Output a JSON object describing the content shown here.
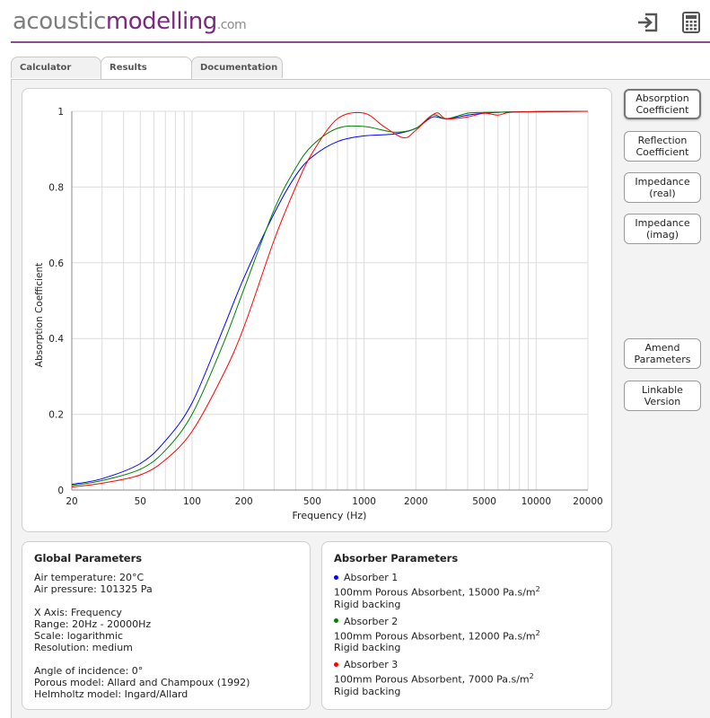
{
  "header": {
    "logo_part1": "acoustic",
    "logo_part2": "modelling",
    "logo_part3": ".com"
  },
  "tabs": [
    {
      "label": "Calculator"
    },
    {
      "label": "Results"
    },
    {
      "label": "Documentation"
    }
  ],
  "active_tab": "Results",
  "side_buttons": [
    {
      "label": "Absorption Coefficient"
    },
    {
      "label": "Reflection Coefficient"
    },
    {
      "label": "Impedance (real)"
    },
    {
      "label": "Impedance (imag)"
    },
    {
      "label": "Amend Parameters"
    },
    {
      "label": "Linkable Version"
    }
  ],
  "chart_data": {
    "type": "line",
    "xlabel": "Frequency (Hz)",
    "ylabel": "Absorption Coefficient",
    "xscale": "log",
    "xlim": [
      20,
      20000
    ],
    "ylim": [
      0,
      1
    ],
    "x_ticks": [
      20,
      50,
      100,
      200,
      500,
      1000,
      2000,
      5000,
      10000,
      20000
    ],
    "x_tick_labels": [
      "20",
      "50",
      "100",
      "200",
      "500",
      "1000",
      "2000",
      "5000",
      "10000",
      "20000"
    ],
    "y_ticks": [
      0,
      0.2,
      0.4,
      0.6,
      0.8,
      1
    ],
    "y_tick_labels": [
      "0",
      "0.2",
      "0.4",
      "0.6",
      "0.8",
      "1"
    ],
    "grid": true,
    "series": [
      {
        "color": "#0000ff",
        "x": [
          20,
          30,
          50,
          70,
          100,
          150,
          200,
          300,
          400,
          500,
          700,
          1000,
          1500,
          2000,
          2500,
          3000,
          4000,
          5000,
          7000,
          10000,
          20000
        ],
        "values": [
          0.015,
          0.03,
          0.07,
          0.13,
          0.23,
          0.42,
          0.56,
          0.73,
          0.83,
          0.88,
          0.92,
          0.935,
          0.94,
          0.955,
          0.985,
          0.98,
          0.99,
          0.995,
          0.998,
          0.999,
          1.0
        ]
      },
      {
        "color": "#008000",
        "x": [
          20,
          30,
          50,
          70,
          100,
          150,
          200,
          300,
          400,
          500,
          700,
          1000,
          1500,
          2000,
          2500,
          3000,
          4000,
          5000,
          7000,
          10000,
          20000
        ],
        "values": [
          0.012,
          0.025,
          0.055,
          0.105,
          0.2,
          0.38,
          0.53,
          0.74,
          0.85,
          0.91,
          0.955,
          0.96,
          0.945,
          0.955,
          0.99,
          0.98,
          0.995,
          0.997,
          0.998,
          0.999,
          1.0
        ]
      },
      {
        "color": "#ff0000",
        "x": [
          20,
          30,
          50,
          70,
          100,
          150,
          200,
          300,
          400,
          500,
          700,
          1000,
          1300,
          1700,
          2000,
          2600,
          3000,
          4000,
          5000,
          6000,
          7000,
          10000,
          20000
        ],
        "values": [
          0.008,
          0.018,
          0.04,
          0.08,
          0.155,
          0.3,
          0.43,
          0.66,
          0.8,
          0.89,
          0.98,
          0.995,
          0.96,
          0.93,
          0.95,
          0.995,
          0.98,
          0.985,
          0.995,
          0.99,
          0.997,
          0.999,
          1.0
        ]
      }
    ]
  },
  "global_params": {
    "title": "Global Parameters",
    "air_temp": "Air temperature: 20°C",
    "air_pressure": "Air pressure: 101325 Pa",
    "x_axis": "X Axis: Frequency",
    "range": "Range: 20Hz - 20000Hz",
    "scale": "Scale: logarithmic",
    "resolution": "Resolution: medium",
    "angle": "Angle of incidence: 0°",
    "porous_model": "Porous model: Allard and Champoux (1992)",
    "helmholtz_model": "Helmholtz model: Ingard/Allard"
  },
  "absorber_params": {
    "title": "Absorber Parameters",
    "absorbers": [
      {
        "name": "Absorber 1",
        "color": "#0000ff",
        "desc": "100mm Porous Absorbent, 15000 Pa.s/m",
        "sup": "2",
        "backing": "Rigid backing"
      },
      {
        "name": "Absorber 2",
        "color": "#008000",
        "desc": "100mm Porous Absorbent, 12000 Pa.s/m",
        "sup": "2",
        "backing": "Rigid backing"
      },
      {
        "name": "Absorber 3",
        "color": "#ff0000",
        "desc": "100mm Porous Absorbent, 7000 Pa.s/m",
        "sup": "2",
        "backing": "Rigid backing"
      }
    ]
  }
}
